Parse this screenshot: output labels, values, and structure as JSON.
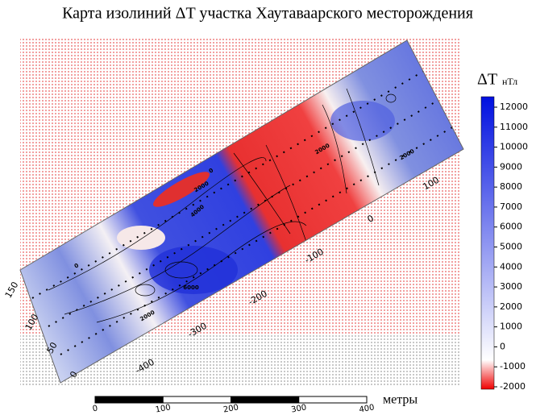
{
  "title": "Карта изолиний ΔT участка  Хаутаваарского месторождения",
  "colorbar": {
    "symbol": "ΔT",
    "unit": "нТл",
    "ticks": [
      12000,
      11000,
      10000,
      9000,
      8000,
      7000,
      6000,
      5000,
      4000,
      3000,
      2000,
      1000,
      0,
      -1000,
      -2000
    ]
  },
  "scale_bar": {
    "ticks": [
      0,
      100,
      200,
      300,
      400
    ],
    "unit": "метры"
  },
  "grid_labels": {
    "along": [
      -400,
      -300,
      -200,
      -100,
      0,
      100
    ],
    "across": [
      150,
      100,
      50,
      0
    ]
  },
  "contour_labels": [
    "0",
    "0",
    "2000",
    "4000",
    "6000",
    "2000",
    "2000",
    "2000"
  ]
}
